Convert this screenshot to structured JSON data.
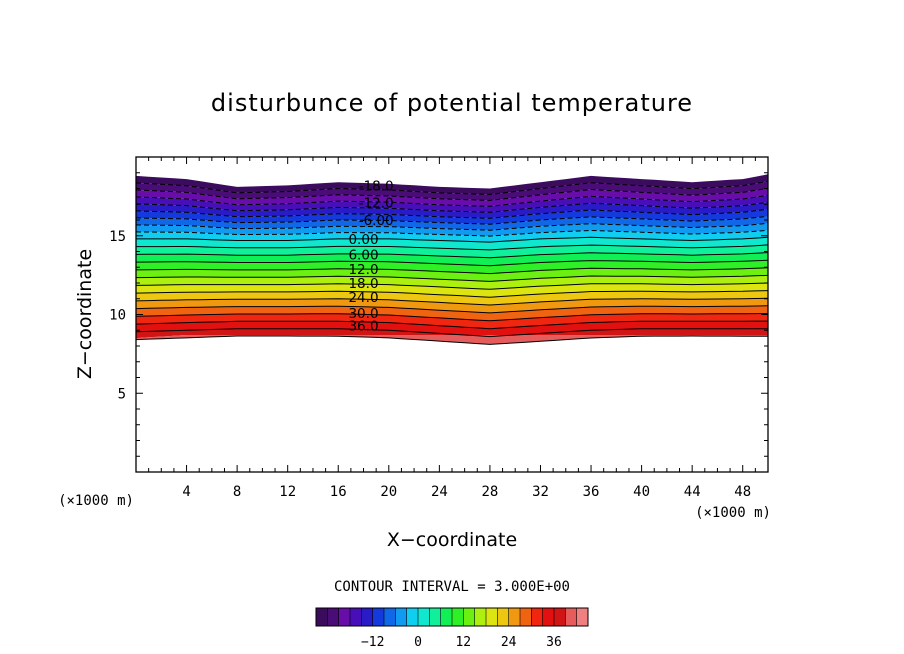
{
  "chart_data": {
    "type": "contour",
    "title": "disturbunce of potential temperature",
    "xlabel": "X−coordinate",
    "ylabel": "Z−coordinate",
    "x_unit": "(×1000 m)",
    "y_unit": "(×1000 m)",
    "xlim": [
      0,
      50
    ],
    "ylim": [
      0,
      20
    ],
    "x_ticks": [
      4,
      8,
      12,
      16,
      20,
      24,
      28,
      32,
      36,
      40,
      44,
      48
    ],
    "x_tick_labels": [
      "4",
      "8",
      "12",
      "16",
      "20",
      "24",
      "28",
      "32",
      "36",
      "40",
      "44",
      "48"
    ],
    "y_ticks": [
      5,
      10,
      15
    ],
    "y_tick_labels": [
      "5",
      "10",
      "15"
    ],
    "contour_interval_text": "CONTOUR INTERVAL = 3.000E+00",
    "contour_labels": [
      {
        "text": "-18.0",
        "x": 19,
        "z": 18.2
      },
      {
        "text": "-12.0",
        "x": 19,
        "z": 17.1
      },
      {
        "text": "-6.00",
        "x": 19,
        "z": 16.0
      },
      {
        "text": "0.00",
        "x": 18,
        "z": 14.8
      },
      {
        "text": "6.00",
        "x": 18,
        "z": 13.8
      },
      {
        "text": "12.0",
        "x": 18,
        "z": 12.9
      },
      {
        "text": "18.0",
        "x": 18,
        "z": 12.0
      },
      {
        "text": "24.0",
        "x": 18,
        "z": 11.1
      },
      {
        "text": "30.0",
        "x": 18,
        "z": 10.1
      },
      {
        "text": "36.0",
        "x": 18,
        "z": 9.3
      }
    ],
    "field": {
      "x": [
        0,
        4,
        8,
        12,
        16,
        20,
        24,
        28,
        32,
        36,
        40,
        44,
        48,
        50
      ],
      "top_z": [
        18.8,
        18.6,
        18.1,
        18.2,
        18.4,
        18.3,
        18.1,
        18.0,
        18.4,
        18.8,
        18.6,
        18.4,
        18.6,
        18.9
      ],
      "bottom_z": [
        8.5,
        8.7,
        8.7,
        8.7,
        8.7,
        8.7,
        8.7,
        8.7,
        8.7,
        8.7,
        8.7,
        8.7,
        8.7,
        8.7
      ],
      "max_value_z": [
        8.9,
        9.0,
        9.1,
        9.1,
        9.1,
        9.0,
        8.8,
        8.6,
        8.8,
        9.0,
        9.1,
        9.1,
        9.1,
        9.1
      ],
      "zero_line_z": [
        14.8,
        14.8,
        14.7,
        14.7,
        14.8,
        14.8,
        14.7,
        14.6,
        14.8,
        14.9,
        14.8,
        14.7,
        14.8,
        14.9
      ],
      "value_min": -27,
      "value_max": 42
    },
    "colorbar": {
      "value_min": -24,
      "value_max": 42,
      "ticks": [
        -12,
        0,
        12,
        24,
        36
      ],
      "tick_labels": [
        "−12",
        "0",
        "12",
        "24",
        "36"
      ]
    },
    "colormap": [
      "#3b0b5e",
      "#6a0dad",
      "#3010c0",
      "#1040e0",
      "#1090f0",
      "#10e0f0",
      "#10f0a0",
      "#10f030",
      "#70f010",
      "#d8f010",
      "#f0c010",
      "#f07010",
      "#f01010",
      "#d01010",
      "#f08080"
    ]
  }
}
